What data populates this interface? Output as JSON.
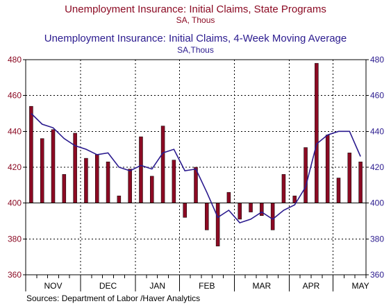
{
  "colors": {
    "series1": "#8B0A23",
    "series2": "#2A1A8E",
    "grid": "#000000",
    "left_axis_labels": "#8B0A23",
    "right_axis_labels": "#2A1A8E"
  },
  "chart_data": {
    "type": "bar",
    "title": "Unemployment Insurance: Initial Claims, State Programs",
    "title_units": "SA, Thous",
    "title2": "Unemployment Insurance: Initial Claims, 4-Week Moving Average",
    "title2_units": "SA,Thous",
    "months": [
      "NOV",
      "DEC",
      "JAN",
      "FEB",
      "MAR",
      "APR",
      "MAY"
    ],
    "month_bounds": [
      0,
      5,
      10,
      14,
      19,
      24,
      28,
      33
    ],
    "ylim": [
      360,
      480
    ],
    "yticks": [
      360,
      380,
      400,
      420,
      440,
      460,
      480
    ],
    "baseline": 400,
    "grid": true,
    "series": [
      {
        "type": "bar",
        "values": [
          454,
          436,
          441,
          416,
          439,
          425,
          427,
          423,
          404,
          419,
          437,
          415,
          443,
          424,
          392,
          420,
          385,
          376,
          406,
          391,
          395,
          393,
          385,
          416,
          404,
          431,
          478,
          438,
          414,
          428,
          423
        ]
      },
      {
        "type": "line",
        "values": [
          450,
          444,
          442,
          436,
          432,
          430,
          427,
          428,
          420,
          418,
          421,
          419,
          428,
          430,
          418,
          419,
          406,
          392,
          396,
          389,
          391,
          395,
          391,
          396,
          399,
          409,
          433,
          438,
          440,
          440,
          426
        ]
      }
    ],
    "source": "Sources:  Department of Labor /Haver Analytics"
  }
}
